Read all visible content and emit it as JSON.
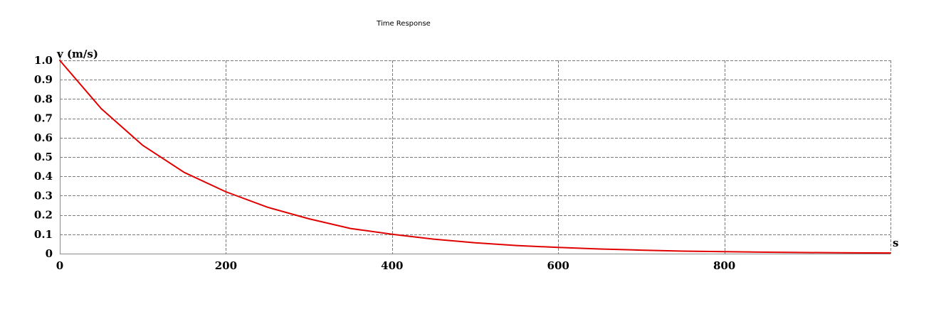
{
  "chart_data": {
    "type": "line",
    "title": "Time Response",
    "xlabel": "s",
    "ylabel": "v (m/s)",
    "xlim": [
      0,
      1000
    ],
    "ylim": [
      0,
      1.0
    ],
    "x_ticks": [
      0,
      200,
      400,
      600,
      800
    ],
    "x_tick_labels": [
      "0",
      "200",
      "400",
      "600",
      "800"
    ],
    "y_ticks": [
      0,
      0.1,
      0.2,
      0.3,
      0.4,
      0.5,
      0.6,
      0.7,
      0.8,
      0.9,
      1.0
    ],
    "y_tick_labels": [
      "0",
      "0.1",
      "0.2",
      "0.3",
      "0.4",
      "0.5",
      "0.6",
      "0.7",
      "0.8",
      "0.9",
      "1.0"
    ],
    "grid": true,
    "series": [
      {
        "color": "#e00000",
        "x": [
          0,
          50,
          100,
          150,
          200,
          250,
          300,
          350,
          400,
          450,
          500,
          550,
          600,
          650,
          700,
          750,
          800,
          850,
          900,
          950,
          1000
        ],
        "y": [
          1.0,
          0.75,
          0.56,
          0.42,
          0.32,
          0.24,
          0.18,
          0.13,
          0.1,
          0.075,
          0.056,
          0.042,
          0.032,
          0.024,
          0.018,
          0.013,
          0.01,
          0.0075,
          0.0056,
          0.0042,
          0.0032
        ]
      }
    ]
  }
}
